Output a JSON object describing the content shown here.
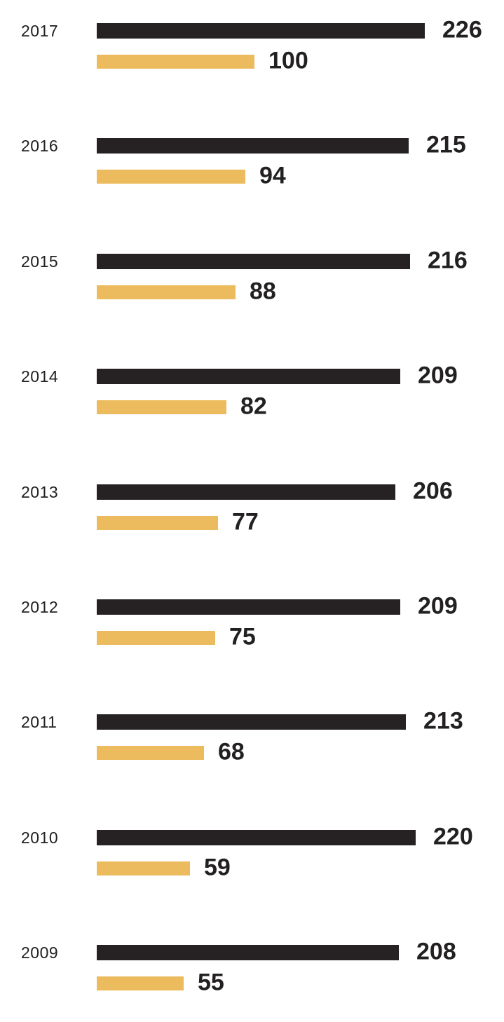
{
  "chart_data": {
    "type": "bar",
    "orientation": "horizontal",
    "title": "",
    "xlabel": "",
    "ylabel": "",
    "grid": false,
    "legend": false,
    "value_labels_shown": true,
    "background_color": "#ffffff",
    "label_text_color": "#232021",
    "categories": [
      "2017",
      "2016",
      "2015",
      "2014",
      "2013",
      "2012",
      "2011",
      "2010",
      "2009"
    ],
    "series": [
      {
        "name": "black",
        "color": "#262223",
        "values": [
          226,
          215,
          216,
          209,
          206,
          209,
          213,
          220,
          208
        ]
      },
      {
        "name": "gold",
        "color": "#ecbb5d",
        "values": [
          100,
          94,
          88,
          82,
          77,
          75,
          68,
          59,
          55
        ]
      }
    ]
  }
}
